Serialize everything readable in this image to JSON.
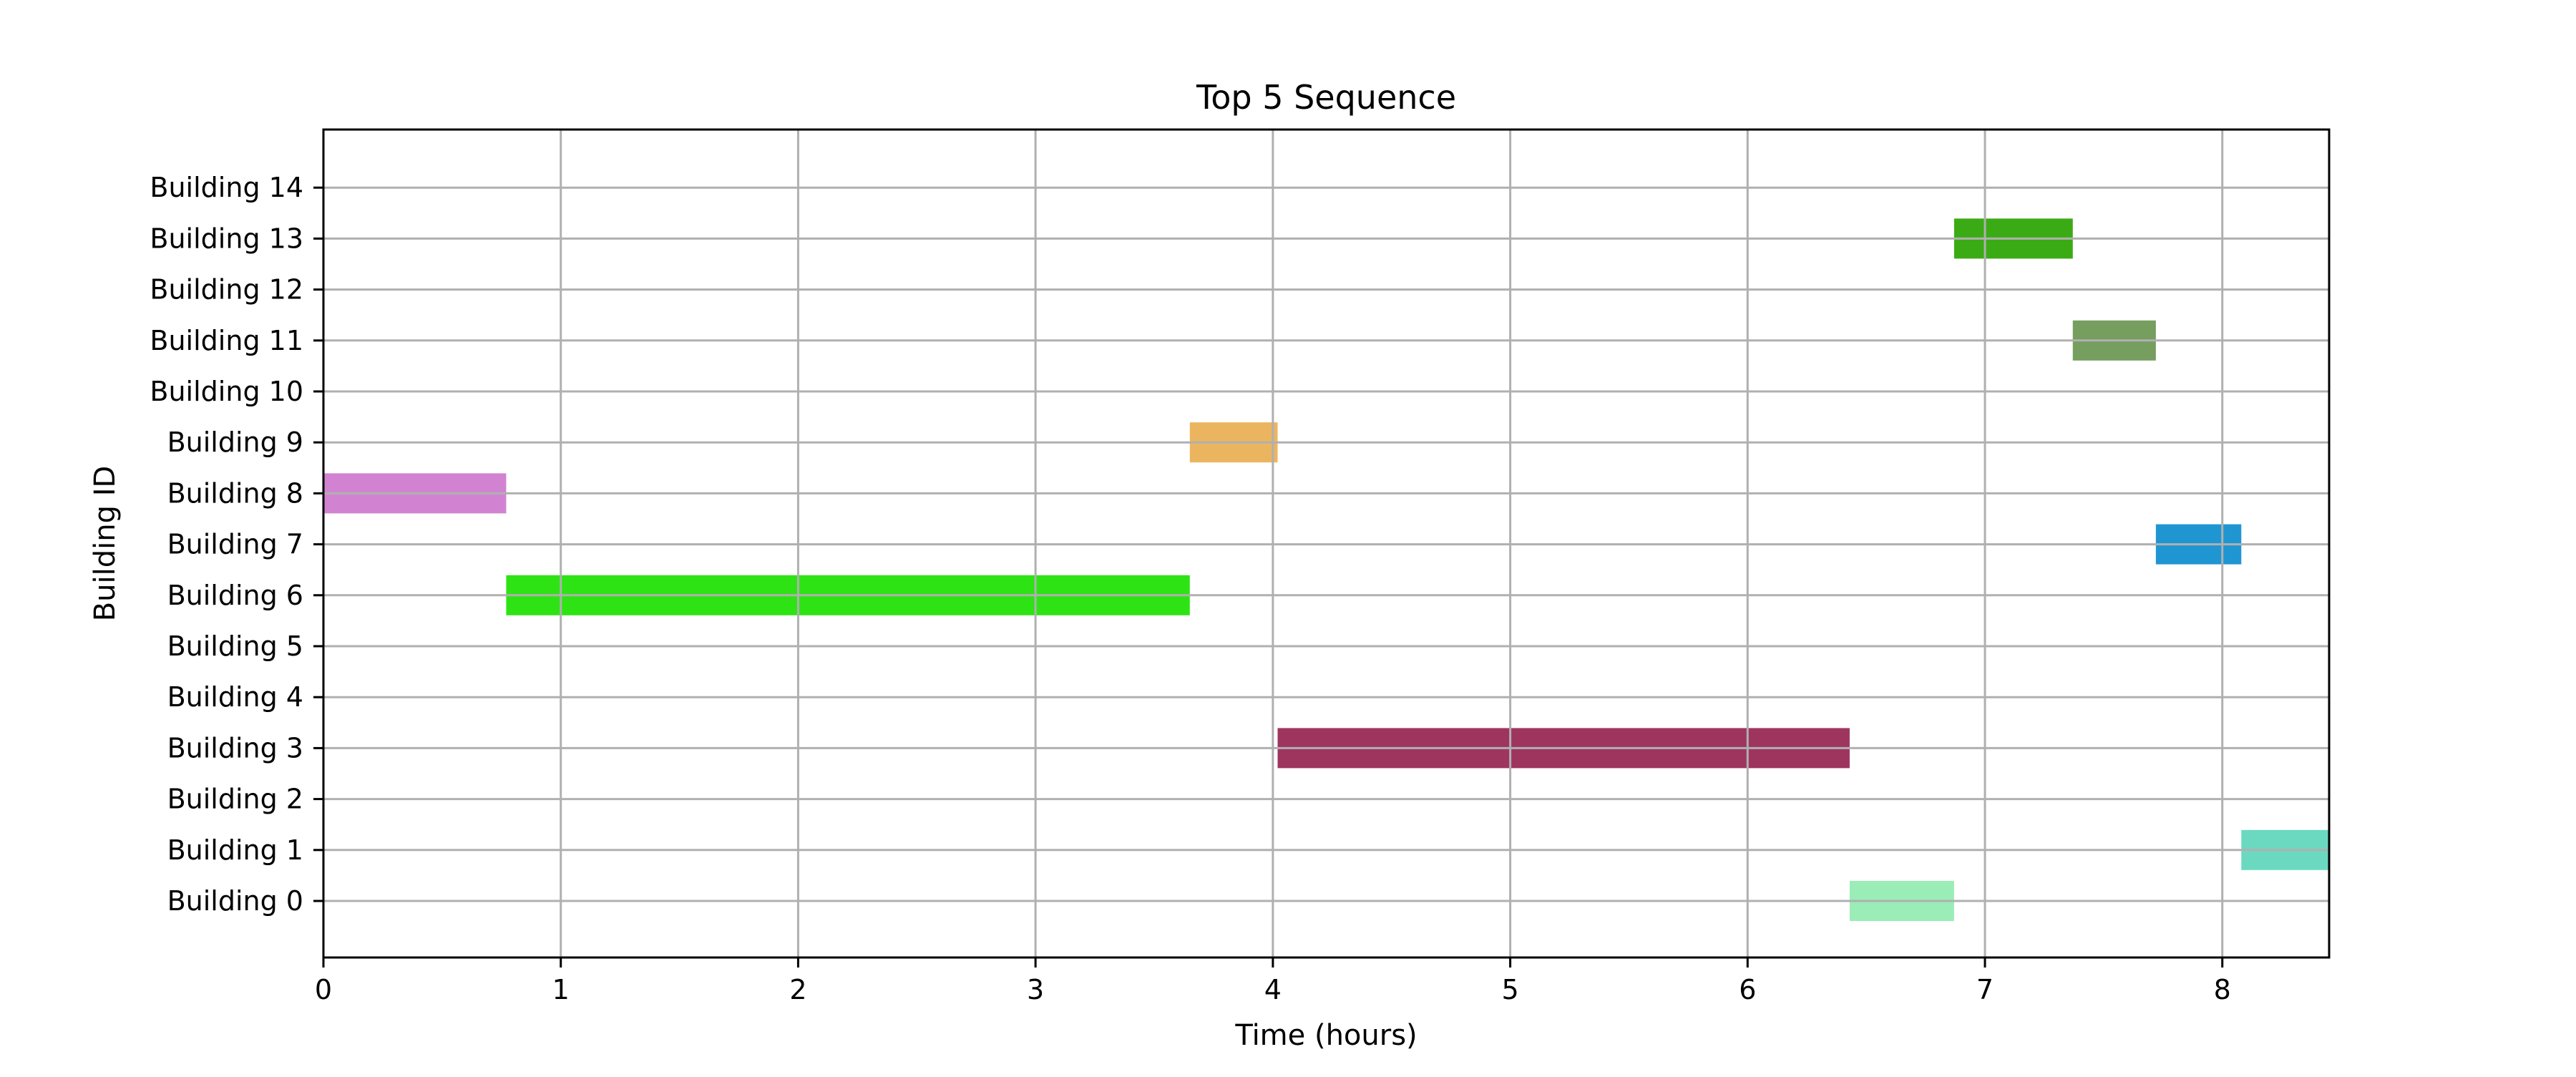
{
  "chart_data": {
    "type": "gantt",
    "title": "Top 5 Sequence",
    "xlabel": "Time (hours)",
    "ylabel": "Building ID",
    "xlim": [
      0,
      8.45
    ],
    "x_ticks": [
      0,
      1,
      2,
      3,
      4,
      5,
      6,
      7,
      8
    ],
    "grid": true,
    "categories": [
      "Building 0",
      "Building 1",
      "Building 2",
      "Building 3",
      "Building 4",
      "Building 5",
      "Building 6",
      "Building 7",
      "Building 8",
      "Building 9",
      "Building 10",
      "Building 11",
      "Building 12",
      "Building 13",
      "Building 14"
    ],
    "tasks": [
      {
        "building": "Building 8",
        "start": 0.0,
        "end": 0.77,
        "color": "#d183d1"
      },
      {
        "building": "Building 6",
        "start": 0.77,
        "end": 3.65,
        "color": "#2ee314"
      },
      {
        "building": "Building 9",
        "start": 3.65,
        "end": 4.02,
        "color": "#ebb55f"
      },
      {
        "building": "Building 3",
        "start": 4.02,
        "end": 6.43,
        "color": "#9e355f"
      },
      {
        "building": "Building 0",
        "start": 6.43,
        "end": 6.87,
        "color": "#9aedb7"
      },
      {
        "building": "Building 13",
        "start": 6.87,
        "end": 7.37,
        "color": "#3aab14"
      },
      {
        "building": "Building 11",
        "start": 7.37,
        "end": 7.72,
        "color": "#769e5f"
      },
      {
        "building": "Building 7",
        "start": 7.72,
        "end": 8.08,
        "color": "#1f96d2"
      },
      {
        "building": "Building 1",
        "start": 8.08,
        "end": 8.45,
        "color": "#6bd9c0"
      }
    ]
  }
}
